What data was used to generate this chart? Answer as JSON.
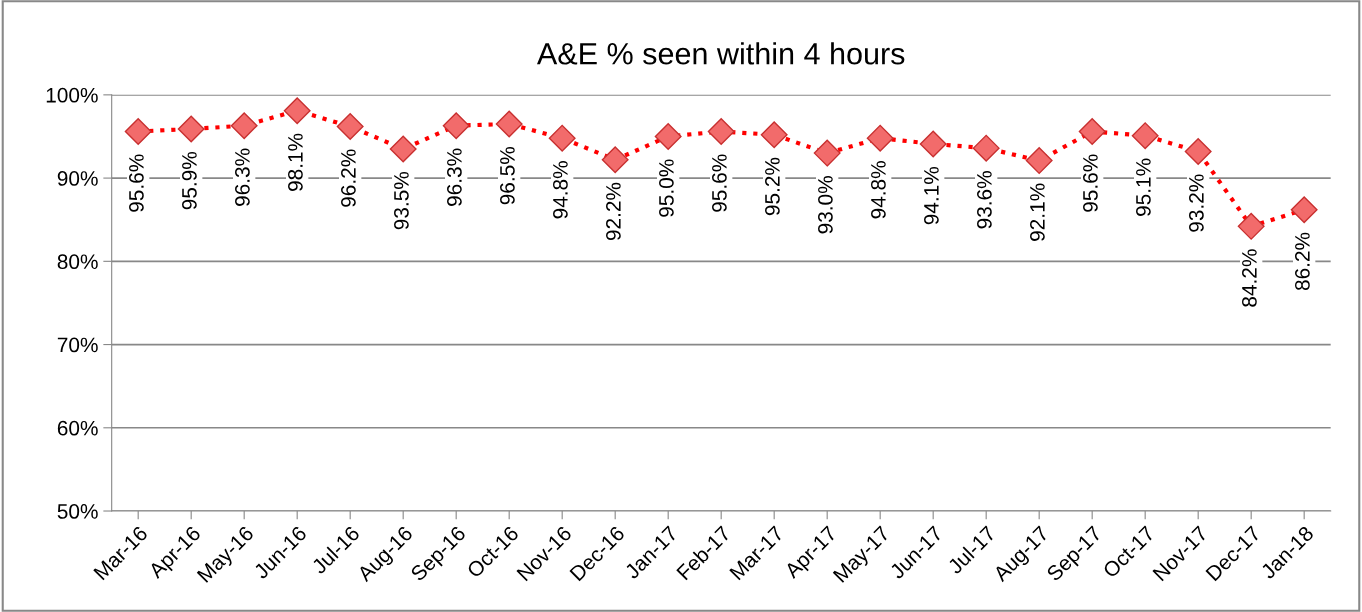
{
  "chart_data": {
    "type": "line",
    "title": "A&E % seen within 4 hours",
    "categories": [
      "Mar-16",
      "Apr-16",
      "May-16",
      "Jun-16",
      "Jul-16",
      "Aug-16",
      "Sep-16",
      "Oct-16",
      "Nov-16",
      "Dec-16",
      "Jan-17",
      "Feb-17",
      "Mar-17",
      "Apr-17",
      "May-17",
      "Jun-17",
      "Jul-17",
      "Aug-17",
      "Sep-17",
      "Oct-17",
      "Nov-17",
      "Dec-17",
      "Jan-18"
    ],
    "series": [
      {
        "color": "#ff0000",
        "values": [
          95.6,
          95.9,
          96.3,
          98.1,
          96.2,
          93.5,
          96.3,
          96.5,
          94.8,
          92.2,
          95.0,
          95.6,
          95.2,
          93.0,
          94.8,
          94.1,
          93.6,
          92.1,
          95.6,
          95.1,
          93.2,
          84.2,
          86.2
        ],
        "value_labels": [
          "95.6%",
          "95.9%",
          "96.3%",
          "98.1%",
          "96.2%",
          "93.5%",
          "96.3%",
          "96.5%",
          "94.8%",
          "92.2%",
          "95.0%",
          "95.6%",
          "95.2%",
          "93.0%",
          "94.8%",
          "94.1%",
          "93.6%",
          "92.1%",
          "95.6%",
          "95.1%",
          "93.2%",
          "84.2%",
          "86.2%"
        ]
      }
    ],
    "ylim": [
      50,
      100
    ],
    "yticks": [
      {
        "value": 50,
        "label": "50%"
      },
      {
        "value": 60,
        "label": "60%"
      },
      {
        "value": 70,
        "label": "70%"
      },
      {
        "value": 80,
        "label": "80%"
      },
      {
        "value": 90,
        "label": "90%"
      },
      {
        "value": 100,
        "label": "100%"
      }
    ],
    "grid": "y",
    "marker": "diamond",
    "line_style": "dotted"
  }
}
